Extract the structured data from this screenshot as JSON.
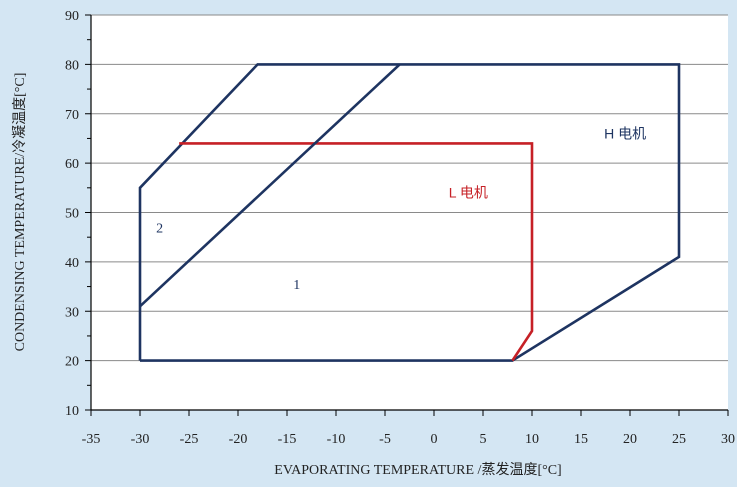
{
  "chart_data": {
    "type": "line",
    "xlabel": "EVAPORATING TEMPERATURE /蒸发温度[°C]",
    "ylabel": "CONDENSING TEMPERATURE/冷凝温度[°C]",
    "xlim": [
      -35,
      30
    ],
    "ylim": [
      10,
      90
    ],
    "x_ticks": [
      -35,
      -30,
      -25,
      -20,
      -15,
      -10,
      -5,
      0,
      5,
      10,
      15,
      20,
      25,
      30
    ],
    "y_ticks": [
      10,
      20,
      30,
      40,
      50,
      60,
      70,
      80,
      90
    ],
    "grid": "horizontal",
    "colors": {
      "h_motor": "#1e3461",
      "l_motor": "#c62026",
      "background": "#d4e6f3",
      "plot_area": "#ffffff"
    },
    "series": [
      {
        "name": "H 电机",
        "points": [
          [
            -30,
            20
          ],
          [
            8,
            20
          ],
          [
            25,
            41
          ],
          [
            25,
            80
          ],
          [
            -18,
            80
          ],
          [
            -30,
            55
          ],
          [
            -30,
            20
          ]
        ]
      },
      {
        "name": "L 电机",
        "points": [
          [
            -26,
            64
          ],
          [
            10,
            64
          ],
          [
            10,
            26
          ],
          [
            8,
            20
          ]
        ]
      },
      {
        "name": "",
        "points": [
          [
            -30,
            31
          ],
          [
            -3.5,
            80
          ]
        ]
      }
    ],
    "annotations": [
      {
        "text": "H 电机",
        "x": 19.5,
        "y": 65,
        "color": "#1e3461"
      },
      {
        "text": "L 电机",
        "x": 3.5,
        "y": 53,
        "color": "#c62026"
      },
      {
        "text": "1",
        "x": -14,
        "y": 34.5,
        "color": "#1e3461"
      },
      {
        "text": "2",
        "x": -28,
        "y": 46,
        "color": "#1e3461"
      }
    ]
  }
}
